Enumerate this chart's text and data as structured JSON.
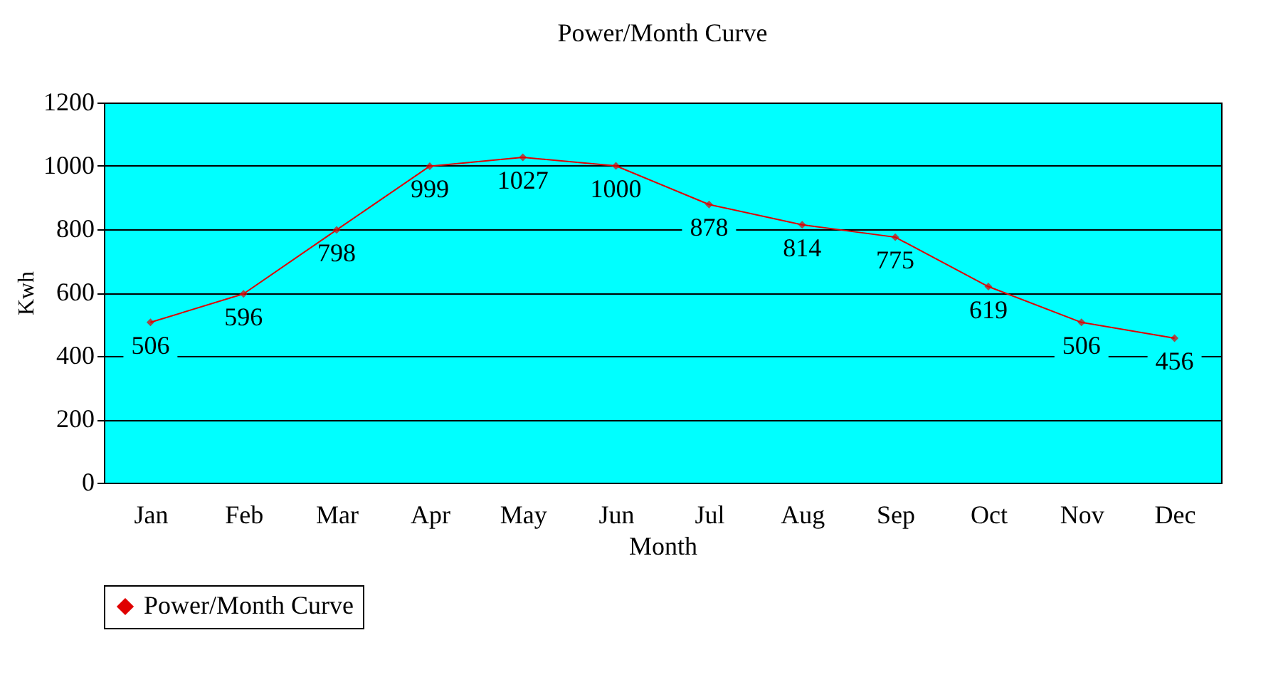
{
  "chart_data": {
    "type": "line",
    "title": "Power/Month Curve",
    "xlabel": "Month",
    "ylabel": "Kwh",
    "categories": [
      "Jan",
      "Feb",
      "Mar",
      "Apr",
      "May",
      "Jun",
      "Jul",
      "Aug",
      "Sep",
      "Oct",
      "Nov",
      "Dec"
    ],
    "series": [
      {
        "name": "Power/Month Curve",
        "color": "#e00000",
        "values": [
          506,
          596,
          798,
          999,
          1027,
          1000,
          878,
          814,
          775,
          619,
          506,
          456
        ]
      }
    ],
    "ylim": [
      0,
      1200
    ],
    "yticks": [
      0,
      200,
      400,
      600,
      800,
      1000,
      1200
    ],
    "grid": "y",
    "legend": "bottom",
    "marker": "diamond",
    "line_style": "solid",
    "data_labels": true
  }
}
